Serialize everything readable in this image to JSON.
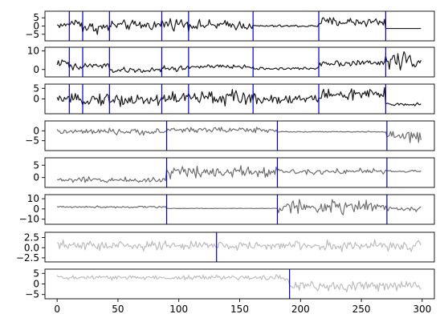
{
  "chart_data": {
    "type": "line",
    "x_range": [
      0,
      299
    ],
    "xlim": [
      -10,
      310
    ],
    "x_ticks": [
      0,
      50,
      100,
      150,
      200,
      250,
      300
    ],
    "x_tick_labels": [
      "0",
      "50",
      "100",
      "150",
      "200",
      "250",
      "300"
    ],
    "grid": false,
    "legend": "none",
    "vline_color": "#0000cc",
    "panels": [
      {
        "color": "#1a1a1a",
        "ylim": [
          -9,
          9
        ],
        "yticks": [
          5,
          0,
          -5
        ],
        "ytick_labels": [
          "5",
          "0",
          "−5"
        ],
        "segments": [
          {
            "start": 0,
            "end": 10,
            "level": 0.5,
            "noise": 1.5
          },
          {
            "start": 10,
            "end": 21,
            "level": 2.0,
            "noise": 2.5
          },
          {
            "start": 21,
            "end": 43,
            "level": -1.0,
            "noise": 3.0
          },
          {
            "start": 43,
            "end": 86,
            "level": 0.5,
            "noise": 2.5
          },
          {
            "start": 86,
            "end": 108,
            "level": 1.5,
            "noise": 3.0
          },
          {
            "start": 108,
            "end": 161,
            "level": 0.5,
            "noise": 2.5
          },
          {
            "start": 161,
            "end": 215,
            "level": 0.0,
            "noise": 0.6
          },
          {
            "start": 215,
            "end": 270,
            "level": 2.5,
            "noise": 2.5
          },
          {
            "start": 270,
            "end": 300,
            "level": -1.5,
            "noise": 0.0
          }
        ],
        "vlines": [
          10,
          21,
          43,
          86,
          108,
          161,
          215,
          270
        ]
      },
      {
        "color": "#1a1a1a",
        "ylim": [
          -4,
          12
        ],
        "yticks": [
          10,
          0
        ],
        "ytick_labels": [
          "10",
          "0"
        ],
        "segments": [
          {
            "start": 0,
            "end": 10,
            "level": 3.5,
            "noise": 1.5
          },
          {
            "start": 10,
            "end": 21,
            "level": 1.0,
            "noise": 2.0
          },
          {
            "start": 21,
            "end": 43,
            "level": 2.0,
            "noise": 1.5
          },
          {
            "start": 43,
            "end": 86,
            "level": -0.5,
            "noise": 1.2
          },
          {
            "start": 86,
            "end": 108,
            "level": 0.5,
            "noise": 1.5
          },
          {
            "start": 108,
            "end": 161,
            "level": 1.5,
            "noise": 1.0
          },
          {
            "start": 161,
            "end": 215,
            "level": 0.5,
            "noise": 0.6
          },
          {
            "start": 215,
            "end": 270,
            "level": 3.5,
            "noise": 1.5
          },
          {
            "start": 270,
            "end": 300,
            "level": 5.0,
            "noise": 4.0
          }
        ],
        "vlines": [
          10,
          21,
          43,
          86,
          108,
          161,
          215,
          270
        ]
      },
      {
        "color": "#1a1a1a",
        "ylim": [
          -7,
          7
        ],
        "yticks": [
          5,
          0
        ],
        "ytick_labels": [
          "5",
          "0"
        ],
        "segments": [
          {
            "start": 0,
            "end": 10,
            "level": 0.0,
            "noise": 1.0
          },
          {
            "start": 10,
            "end": 21,
            "level": -0.5,
            "noise": 2.0
          },
          {
            "start": 21,
            "end": 43,
            "level": 0.0,
            "noise": 2.5
          },
          {
            "start": 43,
            "end": 86,
            "level": -0.5,
            "noise": 2.5
          },
          {
            "start": 86,
            "end": 108,
            "level": 0.5,
            "noise": 3.0
          },
          {
            "start": 108,
            "end": 161,
            "level": 0.5,
            "noise": 3.0
          },
          {
            "start": 161,
            "end": 215,
            "level": 0.0,
            "noise": 2.0
          },
          {
            "start": 215,
            "end": 270,
            "level": 2.0,
            "noise": 2.5
          },
          {
            "start": 270,
            "end": 300,
            "level": -2.5,
            "noise": 0.8
          }
        ],
        "vlines": [
          10,
          21,
          43,
          86,
          108,
          161,
          215,
          270
        ]
      },
      {
        "color": "#6e6e6e",
        "ylim": [
          -10,
          5
        ],
        "yticks": [
          0,
          -5
        ],
        "ytick_labels": [
          "0",
          "−5"
        ],
        "segments": [
          {
            "start": 0,
            "end": 90,
            "level": -0.5,
            "noise": 1.2
          },
          {
            "start": 90,
            "end": 181,
            "level": 0.5,
            "noise": 1.2
          },
          {
            "start": 181,
            "end": 271,
            "level": -0.5,
            "noise": 0.2
          },
          {
            "start": 271,
            "end": 300,
            "level": -3.0,
            "noise": 2.5
          }
        ],
        "vlines": [
          90,
          181,
          271
        ]
      },
      {
        "color": "#6e6e6e",
        "ylim": [
          -4,
          8
        ],
        "yticks": [
          5,
          0
        ],
        "ytick_labels": [
          "5",
          "0"
        ],
        "segments": [
          {
            "start": 0,
            "end": 90,
            "level": -1.0,
            "noise": 1.0
          },
          {
            "start": 90,
            "end": 181,
            "level": 2.5,
            "noise": 2.0
          },
          {
            "start": 181,
            "end": 271,
            "level": 2.5,
            "noise": 1.0
          },
          {
            "start": 271,
            "end": 300,
            "level": 2.5,
            "noise": 0.4
          }
        ],
        "vlines": [
          90,
          181,
          271
        ]
      },
      {
        "color": "#6e6e6e",
        "ylim": [
          -15,
          14
        ],
        "yticks": [
          10,
          0,
          -10
        ],
        "ytick_labels": [
          "10",
          "0",
          "−10"
        ],
        "segments": [
          {
            "start": 0,
            "end": 90,
            "level": 2.0,
            "noise": 0.8
          },
          {
            "start": 90,
            "end": 181,
            "level": 0.5,
            "noise": 0.2
          },
          {
            "start": 181,
            "end": 271,
            "level": 2.0,
            "noise": 5.5
          },
          {
            "start": 271,
            "end": 300,
            "level": 0.0,
            "noise": 2.0
          }
        ],
        "vlines": [
          90,
          181,
          271
        ]
      },
      {
        "color": "#bebebe",
        "ylim": [
          -3.5,
          3.8
        ],
        "yticks": [
          2.5,
          0.0,
          -2.5
        ],
        "ytick_labels": [
          "2.5",
          "0.0",
          "−2.5"
        ],
        "segments": [
          {
            "start": 0,
            "end": 131,
            "level": 0.5,
            "noise": 1.0
          },
          {
            "start": 131,
            "end": 300,
            "level": 0.5,
            "noise": 1.0
          }
        ],
        "vlines": [
          131
        ]
      },
      {
        "color": "#bebebe",
        "ylim": [
          -7,
          7
        ],
        "yticks": [
          5,
          0,
          -5
        ],
        "ytick_labels": [
          "5",
          "0",
          "−5"
        ],
        "segments": [
          {
            "start": 0,
            "end": 191,
            "level": 3.0,
            "noise": 1.0
          },
          {
            "start": 191,
            "end": 300,
            "level": -1.0,
            "noise": 2.0
          }
        ],
        "vlines": [
          191
        ]
      }
    ]
  }
}
